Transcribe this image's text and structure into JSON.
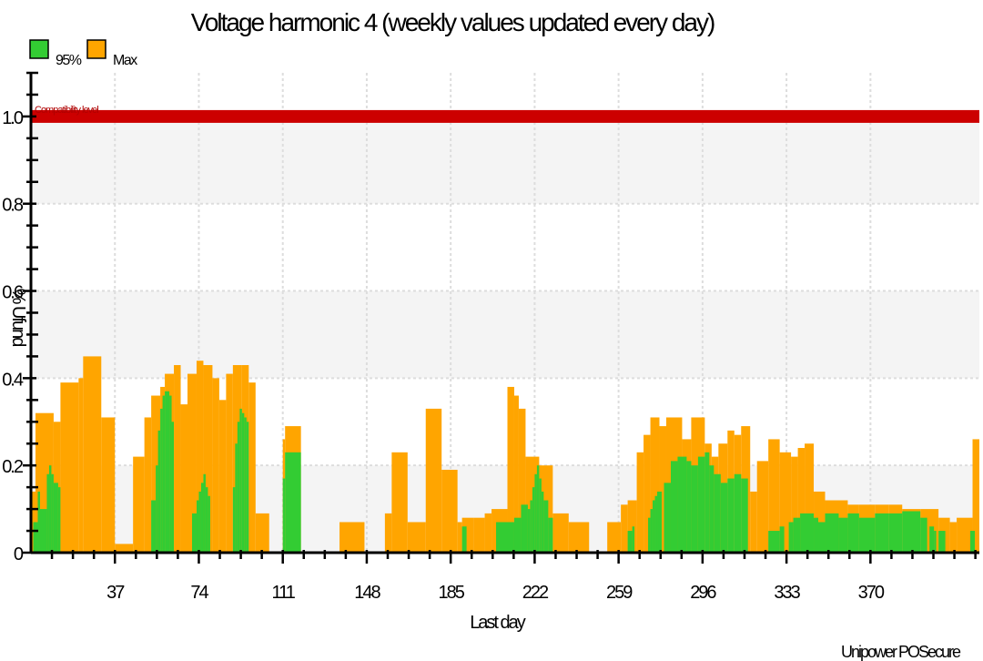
{
  "chart_data": {
    "type": "bar",
    "title": "Voltage harmonic 4 (weekly values updated every day)",
    "xlabel": "Last day",
    "ylabel": "% Ufund",
    "footer": "Unipower POSecure",
    "xlim": [
      0,
      418
    ],
    "ylim": [
      0,
      1.1
    ],
    "x_ticks": [
      37,
      74,
      111,
      148,
      185,
      222,
      259,
      296,
      333,
      370
    ],
    "y_ticks": [
      0,
      0.2,
      0.4,
      0.6,
      0.8,
      1.0
    ],
    "y_tick_labels": [
      "0",
      "0.2",
      "0.4",
      "0.6",
      "0.8",
      "1.0"
    ],
    "compatibility_level": {
      "label": "Compatibility level",
      "value": 1.0,
      "color": "#cc0000"
    },
    "legend_position": "top-left",
    "colors": {
      "p95": "#33cc33",
      "max": "#ffa500",
      "band": "#f4f4f4",
      "grid": "#dddddd"
    },
    "series": [
      {
        "name": "95%",
        "color": "#33cc33",
        "segments": [
          [
            1,
            3,
            0.07
          ],
          [
            3,
            4,
            0.14
          ],
          [
            4,
            7,
            0.1
          ],
          [
            7,
            8,
            0.18
          ],
          [
            8,
            9,
            0.2
          ],
          [
            9,
            10,
            0.18
          ],
          [
            10,
            12,
            0.16
          ],
          [
            12,
            13,
            0.15
          ],
          [
            53,
            55,
            0.12
          ],
          [
            55,
            56,
            0.2
          ],
          [
            56,
            57,
            0.28
          ],
          [
            57,
            58,
            0.33
          ],
          [
            58,
            59,
            0.36
          ],
          [
            59,
            61,
            0.37
          ],
          [
            61,
            62,
            0.36
          ],
          [
            62,
            63,
            0.3
          ],
          [
            71,
            73,
            0.09
          ],
          [
            73,
            74,
            0.12
          ],
          [
            74,
            75,
            0.14
          ],
          [
            75,
            76,
            0.16
          ],
          [
            76,
            77,
            0.18
          ],
          [
            77,
            78,
            0.15
          ],
          [
            78,
            79,
            0.13
          ],
          [
            89,
            90,
            0.15
          ],
          [
            90,
            91,
            0.25
          ],
          [
            91,
            92,
            0.3
          ],
          [
            92,
            93,
            0.33
          ],
          [
            93,
            94,
            0.32
          ],
          [
            94,
            95,
            0.31
          ],
          [
            95,
            96,
            0.3
          ],
          [
            111,
            112,
            0.17
          ],
          [
            112,
            119,
            0.23
          ],
          [
            190,
            192,
            0.06
          ],
          [
            205,
            213,
            0.07
          ],
          [
            213,
            216,
            0.08
          ],
          [
            216,
            219,
            0.11
          ],
          [
            219,
            220,
            0.1
          ],
          [
            220,
            221,
            0.12
          ],
          [
            221,
            222,
            0.15
          ],
          [
            222,
            223,
            0.18
          ],
          [
            223,
            224,
            0.2
          ],
          [
            224,
            225,
            0.17
          ],
          [
            225,
            226,
            0.14
          ],
          [
            226,
            228,
            0.12
          ],
          [
            228,
            230,
            0.08
          ],
          [
            263,
            265,
            0.05
          ],
          [
            265,
            266,
            0.06
          ],
          [
            272,
            273,
            0.08
          ],
          [
            273,
            274,
            0.1
          ],
          [
            274,
            275,
            0.12
          ],
          [
            275,
            276,
            0.13
          ],
          [
            276,
            278,
            0.14
          ],
          [
            279,
            282,
            0.16
          ],
          [
            282,
            285,
            0.21
          ],
          [
            285,
            289,
            0.22
          ],
          [
            289,
            291,
            0.21
          ],
          [
            291,
            294,
            0.2
          ],
          [
            294,
            297,
            0.22
          ],
          [
            297,
            299,
            0.23
          ],
          [
            299,
            301,
            0.2
          ],
          [
            301,
            304,
            0.18
          ],
          [
            304,
            307,
            0.16
          ],
          [
            307,
            310,
            0.17
          ],
          [
            310,
            313,
            0.18
          ],
          [
            313,
            316,
            0.17
          ],
          [
            325,
            330,
            0.05
          ],
          [
            330,
            332,
            0.06
          ],
          [
            334,
            336,
            0.07
          ],
          [
            336,
            339,
            0.08
          ],
          [
            339,
            345,
            0.09
          ],
          [
            345,
            347,
            0.08
          ],
          [
            347,
            350,
            0.07
          ],
          [
            350,
            356,
            0.09
          ],
          [
            356,
            360,
            0.08
          ],
          [
            360,
            365,
            0.09
          ],
          [
            365,
            372,
            0.08
          ],
          [
            372,
            378,
            0.09
          ],
          [
            378,
            384,
            0.09
          ],
          [
            384,
            392,
            0.095
          ],
          [
            392,
            395,
            0.08
          ],
          [
            396,
            398,
            0.06
          ],
          [
            398,
            399,
            0.05
          ],
          [
            400,
            403,
            0.05
          ],
          [
            414,
            416,
            0.05
          ]
        ]
      },
      {
        "name": "Max",
        "color": "#ffa500",
        "segments": [
          [
            0,
            2,
            0.14
          ],
          [
            2,
            10,
            0.32
          ],
          [
            10,
            13,
            0.3
          ],
          [
            13,
            21,
            0.39
          ],
          [
            21,
            23,
            0.4
          ],
          [
            23,
            31,
            0.45
          ],
          [
            31,
            37,
            0.31
          ],
          [
            37,
            45,
            0.02
          ],
          [
            45,
            50,
            0.22
          ],
          [
            50,
            53,
            0.31
          ],
          [
            53,
            57,
            0.36
          ],
          [
            57,
            59,
            0.38
          ],
          [
            59,
            63,
            0.41
          ],
          [
            63,
            66,
            0.43
          ],
          [
            66,
            69,
            0.34
          ],
          [
            69,
            73,
            0.41
          ],
          [
            73,
            76,
            0.44
          ],
          [
            76,
            80,
            0.43
          ],
          [
            80,
            83,
            0.4
          ],
          [
            83,
            86,
            0.35
          ],
          [
            86,
            89,
            0.41
          ],
          [
            89,
            93,
            0.43
          ],
          [
            93,
            96,
            0.43
          ],
          [
            96,
            99,
            0.39
          ],
          [
            99,
            105,
            0.09
          ],
          [
            111,
            112,
            0.26
          ],
          [
            112,
            119,
            0.29
          ],
          [
            136,
            147,
            0.07
          ],
          [
            156,
            159,
            0.09
          ],
          [
            159,
            166,
            0.23
          ],
          [
            166,
            174,
            0.07
          ],
          [
            174,
            181,
            0.33
          ],
          [
            181,
            188,
            0.19
          ],
          [
            188,
            190,
            0.07
          ],
          [
            190,
            195,
            0.08
          ],
          [
            195,
            200,
            0.08
          ],
          [
            200,
            203,
            0.09
          ],
          [
            203,
            210,
            0.1
          ],
          [
            210,
            213,
            0.38
          ],
          [
            213,
            215,
            0.36
          ],
          [
            215,
            218,
            0.33
          ],
          [
            218,
            224,
            0.22
          ],
          [
            224,
            230,
            0.2
          ],
          [
            230,
            237,
            0.09
          ],
          [
            237,
            246,
            0.07
          ],
          [
            254,
            260,
            0.07
          ],
          [
            260,
            263,
            0.11
          ],
          [
            263,
            267,
            0.12
          ],
          [
            267,
            270,
            0.23
          ],
          [
            270,
            273,
            0.27
          ],
          [
            273,
            277,
            0.31
          ],
          [
            277,
            280,
            0.29
          ],
          [
            280,
            287,
            0.31
          ],
          [
            287,
            291,
            0.26
          ],
          [
            291,
            297,
            0.31
          ],
          [
            297,
            300,
            0.25
          ],
          [
            300,
            303,
            0.22
          ],
          [
            303,
            307,
            0.25
          ],
          [
            307,
            310,
            0.28
          ],
          [
            310,
            313,
            0.27
          ],
          [
            313,
            317,
            0.29
          ],
          [
            317,
            320,
            0.14
          ],
          [
            320,
            325,
            0.21
          ],
          [
            325,
            330,
            0.26
          ],
          [
            330,
            335,
            0.23
          ],
          [
            335,
            338,
            0.22
          ],
          [
            338,
            341,
            0.24
          ],
          [
            341,
            345,
            0.25
          ],
          [
            345,
            350,
            0.14
          ],
          [
            350,
            360,
            0.12
          ],
          [
            360,
            365,
            0.11
          ],
          [
            365,
            372,
            0.11
          ],
          [
            372,
            378,
            0.11
          ],
          [
            378,
            384,
            0.11
          ],
          [
            384,
            392,
            0.1
          ],
          [
            392,
            400,
            0.1
          ],
          [
            400,
            405,
            0.08
          ],
          [
            405,
            408,
            0.07
          ],
          [
            408,
            415,
            0.08
          ],
          [
            415,
            418,
            0.26
          ]
        ]
      }
    ]
  }
}
